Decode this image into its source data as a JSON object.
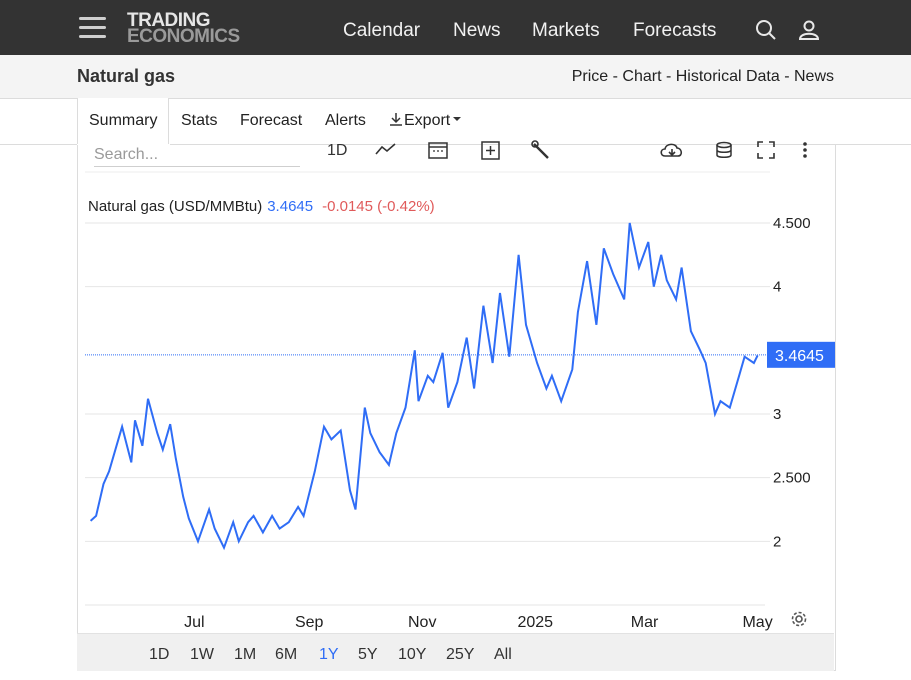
{
  "nav": {
    "logo_line1": "TRADING",
    "logo_line2": "ECONOMICS",
    "links": [
      "Calendar",
      "News",
      "Markets",
      "Forecasts"
    ]
  },
  "header": {
    "title": "Natural gas",
    "links": [
      "Price",
      "Chart",
      "Historical Data",
      "News"
    ],
    "separator": " - "
  },
  "tabs": [
    "Summary",
    "Stats",
    "Forecast",
    "Alerts",
    "Export"
  ],
  "toolbar": {
    "search_placeholder": "Search...",
    "interval_label": "1D"
  },
  "legend": {
    "name": "Natural gas (USD/MMBtu)",
    "value": "3.4645",
    "change": "-0.0145 (-0.42%)"
  },
  "colors": {
    "line": "#2f6df6",
    "negative": "#e05a5a",
    "price_tag": "#2f6df6"
  },
  "ranges": [
    "1D",
    "1W",
    "1M",
    "6M",
    "1Y",
    "5Y",
    "10Y",
    "25Y",
    "All"
  ],
  "active_range": "1Y",
  "chart_data": {
    "type": "line",
    "title": "Natural gas (USD/MMBtu)",
    "xlabel": "",
    "ylabel": "",
    "ylim": [
      1.5,
      4.9
    ],
    "y_ticks": [
      {
        "value": 2,
        "label": "2"
      },
      {
        "value": 2.5,
        "label": "2.500"
      },
      {
        "value": 3,
        "label": "3"
      },
      {
        "value": 4,
        "label": "4"
      },
      {
        "value": 4.5,
        "label": "4.500"
      }
    ],
    "x_ticks": [
      "Jul",
      "Sep",
      "Nov",
      "2025",
      "Mar",
      "May"
    ],
    "last_value": 3.4645,
    "grid": true,
    "series": [
      {
        "name": "Natural gas",
        "x": [
          "2024-05-06",
          "2024-05-09",
          "2024-05-13",
          "2024-05-16",
          "2024-05-20",
          "2024-05-23",
          "2024-05-28",
          "2024-05-30",
          "2024-06-03",
          "2024-06-06",
          "2024-06-11",
          "2024-06-14",
          "2024-06-18",
          "2024-06-21",
          "2024-06-25",
          "2024-06-28",
          "2024-07-03",
          "2024-07-09",
          "2024-07-12",
          "2024-07-17",
          "2024-07-22",
          "2024-07-25",
          "2024-07-30",
          "2024-08-02",
          "2024-08-07",
          "2024-08-12",
          "2024-08-16",
          "2024-08-21",
          "2024-08-26",
          "2024-08-29",
          "2024-09-04",
          "2024-09-09",
          "2024-09-13",
          "2024-09-18",
          "2024-09-23",
          "2024-09-26",
          "2024-10-01",
          "2024-10-04",
          "2024-10-09",
          "2024-10-14",
          "2024-10-18",
          "2024-10-23",
          "2024-10-28",
          "2024-10-30",
          "2024-11-04",
          "2024-11-07",
          "2024-11-12",
          "2024-11-15",
          "2024-11-20",
          "2024-11-25",
          "2024-11-29",
          "2024-12-04",
          "2024-12-09",
          "2024-12-13",
          "2024-12-18",
          "2024-12-23",
          "2024-12-27",
          "2025-01-02",
          "2025-01-07",
          "2025-01-10",
          "2025-01-15",
          "2025-01-21",
          "2025-01-24",
          "2025-01-29",
          "2025-02-03",
          "2025-02-07",
          "2025-02-12",
          "2025-02-18",
          "2025-02-21",
          "2025-02-26",
          "2025-03-03",
          "2025-03-06",
          "2025-03-10",
          "2025-03-13",
          "2025-03-18",
          "2025-03-21",
          "2025-03-26",
          "2025-03-31",
          "2025-04-03",
          "2025-04-08",
          "2025-04-11",
          "2025-04-16",
          "2025-04-21",
          "2025-04-24",
          "2025-04-29",
          "2025-05-01"
        ],
        "values": [
          2.16,
          2.2,
          2.45,
          2.55,
          2.75,
          2.9,
          2.62,
          2.95,
          2.75,
          3.12,
          2.85,
          2.72,
          2.92,
          2.65,
          2.35,
          2.18,
          2.0,
          2.25,
          2.1,
          1.95,
          2.15,
          2.0,
          2.15,
          2.2,
          2.07,
          2.2,
          2.1,
          2.15,
          2.27,
          2.2,
          2.55,
          2.9,
          2.8,
          2.87,
          2.4,
          2.25,
          3.05,
          2.85,
          2.7,
          2.6,
          2.85,
          3.05,
          3.5,
          3.1,
          3.3,
          3.25,
          3.48,
          3.05,
          3.25,
          3.6,
          3.2,
          3.85,
          3.4,
          3.95,
          3.45,
          4.25,
          3.7,
          3.4,
          3.2,
          3.3,
          3.1,
          3.35,
          3.8,
          4.2,
          3.7,
          4.3,
          4.1,
          3.9,
          4.5,
          4.15,
          4.35,
          4.0,
          4.25,
          4.05,
          3.9,
          4.15,
          3.65,
          3.5,
          3.4,
          3.0,
          3.1,
          3.05,
          3.3,
          3.45,
          3.4,
          3.46
        ]
      }
    ]
  }
}
